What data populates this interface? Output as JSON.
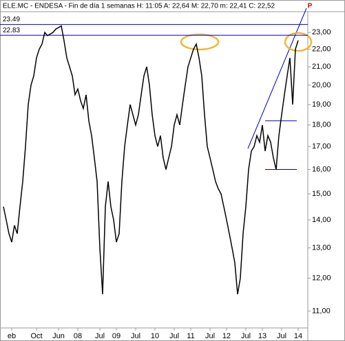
{
  "chart_data": {
    "type": "line",
    "title": "ELE.MC - ENDESA - Fin de día 1 semanas  H: 11:05  A: 22,64  M: 22,70  m: 22,41  C: 22,52",
    "badge": "P",
    "log_scale": true,
    "color": "#000000",
    "ylim": [
      10.75,
      23.6
    ],
    "yticks": [
      {
        "value": 11,
        "label": "11,00"
      },
      {
        "value": 12,
        "label": "12,00"
      },
      {
        "value": 13,
        "label": "13,00"
      },
      {
        "value": 14,
        "label": "14,00"
      },
      {
        "value": 15,
        "label": "15,00"
      },
      {
        "value": 16,
        "label": "16,00"
      },
      {
        "value": 17,
        "label": "17,00"
      },
      {
        "value": 18,
        "label": "18,00"
      },
      {
        "value": 19,
        "label": "19,00"
      },
      {
        "value": 20,
        "label": "20,00"
      },
      {
        "value": 21,
        "label": "21,00"
      },
      {
        "value": 22,
        "label": "22,00"
      },
      {
        "value": 23,
        "label": "23,00"
      }
    ],
    "levels": [
      {
        "value": 23.49,
        "label": "23.49"
      },
      {
        "value": 22.83,
        "label": "22.83"
      }
    ],
    "support_lines": [
      18.2,
      16
    ],
    "categories": [
      null,
      null,
      null,
      "eb",
      null,
      null,
      null,
      null,
      null,
      null,
      null,
      null,
      "Oct",
      null,
      null,
      null,
      null,
      null,
      null,
      null,
      "Jun",
      null,
      null,
      null,
      null,
      null,
      null,
      "08",
      null,
      null,
      null,
      null,
      null,
      null,
      null,
      "Jul",
      null,
      null,
      null,
      null,
      null,
      "09",
      null,
      null,
      null,
      null,
      null,
      null,
      "Jul",
      null,
      null,
      null,
      null,
      null,
      null,
      "10",
      null,
      null,
      null,
      null,
      null,
      null,
      "Jul",
      null,
      null,
      null,
      null,
      null,
      "11",
      null,
      null,
      null,
      null,
      null,
      null,
      "Jul",
      null,
      null,
      null,
      null,
      null,
      "12",
      null,
      null,
      null,
      null,
      null,
      null,
      "Jul",
      null,
      null,
      null,
      null,
      null,
      "13",
      null,
      null,
      null,
      null,
      null,
      null,
      "Jul",
      null,
      null,
      null,
      null,
      null,
      "14"
    ],
    "values": [
      14.5,
      14,
      13.5,
      13.2,
      13.8,
      13.5,
      14.5,
      15.5,
      17,
      19,
      20,
      20.5,
      21.5,
      22,
      22.3,
      23,
      22.8,
      22.9,
      23,
      23.2,
      23.3,
      23.4,
      22.5,
      21.5,
      21,
      20.5,
      19.5,
      19.8,
      19.2,
      18.8,
      19.5,
      18.2,
      17.5,
      16.5,
      15.5,
      13,
      11.5,
      14.5,
      15.5,
      14.5,
      14,
      13.2,
      13.5,
      15.5,
      17,
      18,
      19,
      18.5,
      18,
      18.5,
      19.5,
      20.5,
      21,
      20,
      18.5,
      17.5,
      17,
      17.5,
      16.5,
      16,
      16.5,
      17,
      18,
      18.5,
      18,
      19,
      20,
      21,
      21.5,
      22,
      22.3,
      21.5,
      20.5,
      18.5,
      17,
      16.5,
      16,
      15.5,
      15.2,
      15,
      14.5,
      14,
      13.5,
      13,
      12.5,
      11.5,
      12,
      13.5,
      14.5,
      16,
      16.8,
      17,
      17.5,
      17.2,
      18,
      16.8,
      17.5,
      17.2,
      16.5,
      16,
      17.5,
      18.5,
      19.5,
      20.5,
      21.5,
      19,
      22,
      22.52
    ]
  }
}
